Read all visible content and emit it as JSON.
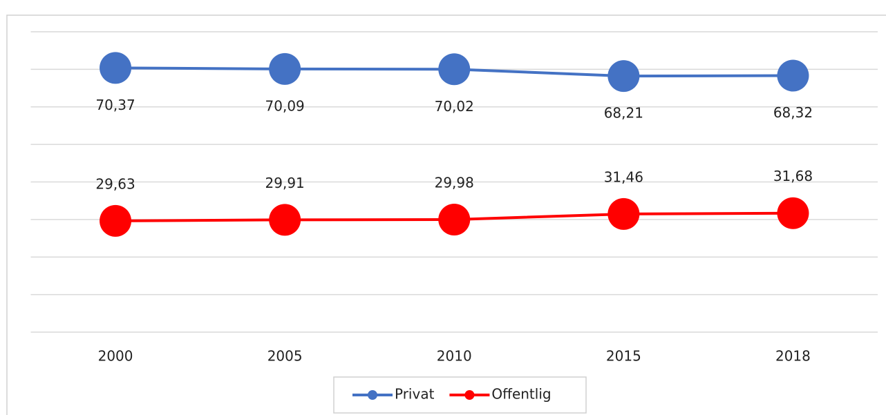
{
  "chart_data": {
    "type": "line",
    "categories": [
      "2000",
      "2005",
      "2010",
      "2015",
      "2018"
    ],
    "series": [
      {
        "name": "Privat",
        "color": "#4472c4",
        "values": [
          70.37,
          70.09,
          70.02,
          68.21,
          68.32
        ],
        "value_labels": [
          "70,37",
          "70,09",
          "70,02",
          "68,21",
          "68,32"
        ],
        "label_position": "below"
      },
      {
        "name": "Offentlig",
        "color": "#ff0000",
        "values": [
          29.63,
          29.91,
          29.98,
          31.46,
          31.68
        ],
        "value_labels": [
          "29,63",
          "29,91",
          "29,98",
          "31,46",
          "31,68"
        ],
        "label_position": "above"
      }
    ],
    "ylim": [
      0,
      80
    ],
    "yticks": [
      0,
      10,
      20,
      30,
      40,
      50,
      60,
      70,
      80
    ],
    "grid": true,
    "legend": "bottom"
  }
}
